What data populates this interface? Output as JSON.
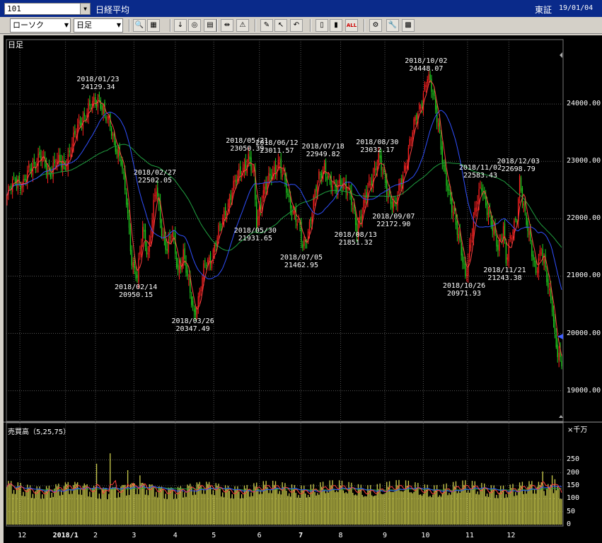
{
  "header": {
    "code": "101",
    "name": "日経平均",
    "market": "東証",
    "date": "19/01/04"
  },
  "toolbar": {
    "chart_type": "ローソク",
    "period": "日足",
    "buttons": [
      {
        "name": "zoom-icon",
        "glyph": "🔍"
      },
      {
        "name": "grid-icon",
        "glyph": "▦"
      },
      {
        "name": "down-arrow-icon",
        "glyph": "↓"
      },
      {
        "name": "search-chart-icon",
        "glyph": "◎"
      },
      {
        "name": "table-icon",
        "glyph": "▤"
      },
      {
        "name": "split-icon",
        "glyph": "⇹"
      },
      {
        "name": "warning-icon",
        "glyph": "⚠"
      },
      {
        "name": "pen-icon",
        "glyph": "✎"
      },
      {
        "name": "cursor-icon",
        "glyph": "↖"
      },
      {
        "name": "undo-icon",
        "glyph": "↶"
      },
      {
        "name": "candle-icon",
        "glyph": "▯"
      },
      {
        "name": "candle-pair-icon",
        "glyph": "▮"
      },
      {
        "name": "all-icon",
        "glyph": "ALL"
      },
      {
        "name": "settings-icon",
        "glyph": "⚙"
      },
      {
        "name": "wrench-icon",
        "glyph": "🔧"
      },
      {
        "name": "color-icon",
        "glyph": "▩"
      }
    ]
  },
  "colors": {
    "up": "#ff2020",
    "down": "#20d020",
    "ma_short": "#ff4040",
    "ma_mid": "#3050ff",
    "ma_long": "#20a040",
    "volume": "#c8c84a",
    "grid": "#555555"
  },
  "chart_data": {
    "type": "candlestick",
    "panel_label": "日足",
    "volume_label": "売買高（5,25,75）",
    "volume_unit": "×千万",
    "y_ticks": [
      "24000.00",
      "23000.00",
      "22000.00",
      "21000.00",
      "20000.00",
      "19000.00"
    ],
    "y_values": [
      24000,
      23000,
      22000,
      21000,
      20000,
      19000
    ],
    "ylim": [
      18700,
      25000
    ],
    "vol_ticks": [
      "250",
      "200",
      "150",
      "100",
      "50",
      "0"
    ],
    "vol_values": [
      250,
      200,
      150,
      100,
      50,
      0
    ],
    "vol_lim": [
      0,
      300
    ],
    "x_ticks": [
      "12",
      "2018/1",
      "2",
      "3",
      "4",
      "5",
      "6",
      "7",
      "8",
      "9",
      "10",
      "11",
      "12"
    ],
    "annotations": [
      {
        "date": "2018/01/23",
        "value": "24129.34",
        "price": 24129,
        "pos": "above"
      },
      {
        "date": "2018/02/14",
        "value": "20950.15",
        "price": 20950,
        "pos": "below"
      },
      {
        "date": "2018/02/27",
        "value": "22502.05",
        "price": 22502,
        "pos": "above"
      },
      {
        "date": "2018/03/26",
        "value": "20347.49",
        "price": 20347,
        "pos": "below"
      },
      {
        "date": "2018/05/21",
        "value": "23050.39",
        "price": 23050,
        "pos": "above"
      },
      {
        "date": "2018/05/30",
        "value": "21931.65",
        "price": 21931,
        "pos": "below"
      },
      {
        "date": "2018/06/12",
        "value": "23011.57",
        "price": 23011,
        "pos": "above"
      },
      {
        "date": "2018/07/05",
        "value": "21462.95",
        "price": 21462,
        "pos": "below"
      },
      {
        "date": "2018/07/18",
        "value": "22949.82",
        "price": 22949,
        "pos": "above"
      },
      {
        "date": "2018/08/13",
        "value": "21851.32",
        "price": 21851,
        "pos": "below"
      },
      {
        "date": "2018/08/30",
        "value": "23032.17",
        "price": 23032,
        "pos": "above"
      },
      {
        "date": "2018/09/07",
        "value": "22172.90",
        "price": 22172,
        "pos": "below"
      },
      {
        "date": "2018/10/02",
        "value": "24448.07",
        "price": 24448,
        "pos": "above"
      },
      {
        "date": "2018/10/26",
        "value": "20971.93",
        "price": 20971,
        "pos": "below"
      },
      {
        "date": "2018/11/02",
        "value": "22583.43",
        "price": 22583,
        "pos": "above"
      },
      {
        "date": "2018/11/21",
        "value": "21243.38",
        "price": 21243,
        "pos": "below"
      },
      {
        "date": "2018/12/03",
        "value": "22698.79",
        "price": 22698,
        "pos": "above"
      }
    ],
    "anchors": [
      [
        0,
        22400
      ],
      [
        6,
        22700
      ],
      [
        12,
        22600
      ],
      [
        18,
        22900
      ],
      [
        24,
        23100
      ],
      [
        30,
        22800
      ],
      [
        36,
        23000
      ],
      [
        42,
        22900
      ],
      [
        48,
        23300
      ],
      [
        54,
        23700
      ],
      [
        60,
        23900
      ],
      [
        64,
        24000
      ],
      [
        68,
        24129
      ],
      [
        72,
        23800
      ],
      [
        76,
        23600
      ],
      [
        80,
        23300
      ],
      [
        84,
        23000
      ],
      [
        88,
        22300
      ],
      [
        92,
        21300
      ],
      [
        96,
        20950
      ],
      [
        100,
        21800
      ],
      [
        104,
        21400
      ],
      [
        108,
        22200
      ],
      [
        110,
        22502
      ],
      [
        114,
        21800
      ],
      [
        118,
        21500
      ],
      [
        122,
        21700
      ],
      [
        126,
        21100
      ],
      [
        130,
        21400
      ],
      [
        134,
        20800
      ],
      [
        138,
        20347
      ],
      [
        142,
        20700
      ],
      [
        146,
        21200
      ],
      [
        150,
        21300
      ],
      [
        154,
        21600
      ],
      [
        158,
        21900
      ],
      [
        162,
        22200
      ],
      [
        166,
        22500
      ],
      [
        170,
        22700
      ],
      [
        174,
        22900
      ],
      [
        178,
        23050
      ],
      [
        182,
        22700
      ],
      [
        184,
        21931
      ],
      [
        188,
        22400
      ],
      [
        192,
        22600
      ],
      [
        196,
        22800
      ],
      [
        200,
        23011
      ],
      [
        204,
        22700
      ],
      [
        208,
        22300
      ],
      [
        212,
        22100
      ],
      [
        216,
        21800
      ],
      [
        218,
        21462
      ],
      [
        222,
        21800
      ],
      [
        226,
        22300
      ],
      [
        230,
        22700
      ],
      [
        234,
        22949
      ],
      [
        238,
        22600
      ],
      [
        242,
        22500
      ],
      [
        246,
        22700
      ],
      [
        250,
        22500
      ],
      [
        254,
        22300
      ],
      [
        258,
        21851
      ],
      [
        262,
        22100
      ],
      [
        266,
        22500
      ],
      [
        270,
        22800
      ],
      [
        274,
        23032
      ],
      [
        278,
        22700
      ],
      [
        282,
        22400
      ],
      [
        286,
        22172
      ],
      [
        290,
        22600
      ],
      [
        294,
        23000
      ],
      [
        298,
        23400
      ],
      [
        302,
        23800
      ],
      [
        306,
        24100
      ],
      [
        310,
        24448
      ],
      [
        314,
        24200
      ],
      [
        318,
        23700
      ],
      [
        322,
        22800
      ],
      [
        326,
        22400
      ],
      [
        330,
        22100
      ],
      [
        334,
        21500
      ],
      [
        338,
        20971
      ],
      [
        342,
        21700
      ],
      [
        346,
        22200
      ],
      [
        350,
        22583
      ],
      [
        354,
        22200
      ],
      [
        358,
        21800
      ],
      [
        362,
        21500
      ],
      [
        366,
        21900
      ],
      [
        368,
        21243
      ],
      [
        372,
        21700
      ],
      [
        376,
        22100
      ],
      [
        378,
        22698
      ],
      [
        382,
        22000
      ],
      [
        386,
        21600
      ],
      [
        390,
        21100
      ],
      [
        394,
        21400
      ],
      [
        398,
        21000
      ],
      [
        402,
        20500
      ],
      [
        404,
        19900
      ],
      [
        406,
        19600
      ],
      [
        408,
        19500
      ]
    ]
  }
}
